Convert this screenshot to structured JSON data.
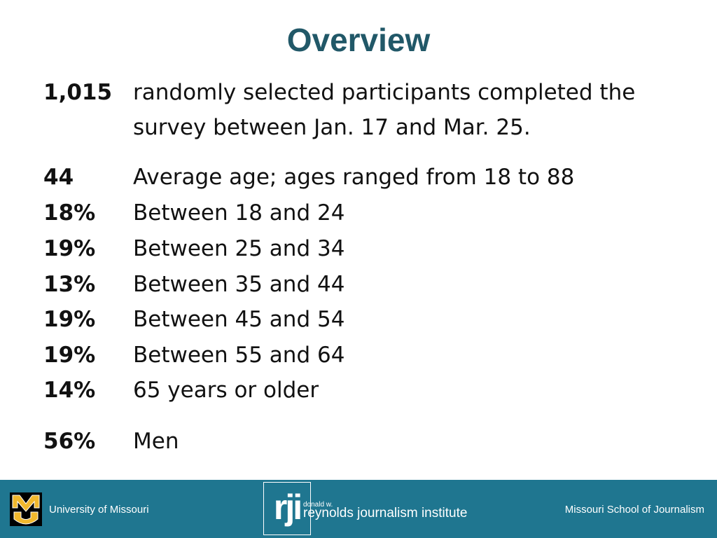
{
  "title": "Overview",
  "rows": [
    {
      "stat": "1,015",
      "desc": "randomly selected participants completed the",
      "desc2": "survey between Jan. 17 and Mar. 25."
    },
    {
      "stat": "44",
      "desc": "Average age; ages ranged from 18 to 88"
    },
    {
      "stat": "18%",
      "desc": "Between 18 and 24"
    },
    {
      "stat": "19%",
      "desc": "Between 25 and 34"
    },
    {
      "stat": "13%",
      "desc": "Between 35 and 44"
    },
    {
      "stat": "19%",
      "desc": "Between 45 and 54"
    },
    {
      "stat": "19%",
      "desc": "Between 55 and 64"
    },
    {
      "stat": "14%",
      "desc": "65 years or older"
    },
    {
      "stat": "56%",
      "desc": "Men"
    }
  ],
  "footer": {
    "university": "University of Missouri",
    "logo_text": "rji",
    "logo_small": "donald w.",
    "institute": "reynolds journalism institute",
    "school": "Missouri School of Journalism",
    "bg_color": "#1f7690",
    "icons": [
      "mu-logo-icon",
      "rji-logo-icon"
    ]
  }
}
